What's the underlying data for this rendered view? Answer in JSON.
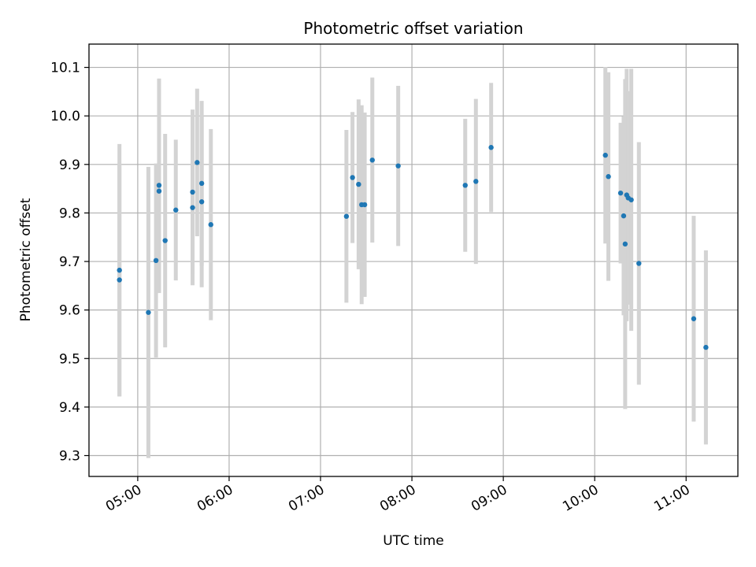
{
  "chart_data": {
    "type": "scatter",
    "title": "Photometric offset variation",
    "xlabel": "UTC time",
    "ylabel": "Photometric offset",
    "xlim": [
      "04:28",
      "11:34"
    ],
    "ylim": [
      9.257,
      10.148
    ],
    "x_ticks": [
      "05:00",
      "06:00",
      "07:00",
      "08:00",
      "09:00",
      "10:00",
      "11:00"
    ],
    "y_ticks": [
      "9.3",
      "9.4",
      "9.5",
      "9.6",
      "9.7",
      "9.8",
      "9.9",
      "10.0",
      "10.1"
    ],
    "grid": true,
    "point_color": "#1f77b4",
    "errorbar_color": "#d3d3d3",
    "points": [
      {
        "x": "04:48",
        "y": 9.682,
        "yerr": 0.26
      },
      {
        "x": "04:48",
        "y": 9.662,
        "yerr": 0.24
      },
      {
        "x": "05:07",
        "y": 9.595,
        "yerr": 0.3
      },
      {
        "x": "05:12",
        "y": 9.702,
        "yerr": 0.2
      },
      {
        "x": "05:14",
        "y": 9.857,
        "yerr": 0.22
      },
      {
        "x": "05:14",
        "y": 9.845,
        "yerr": 0.21
      },
      {
        "x": "05:18",
        "y": 9.743,
        "yerr": 0.22
      },
      {
        "x": "05:25",
        "y": 9.806,
        "yerr": 0.145
      },
      {
        "x": "05:36",
        "y": 9.843,
        "yerr": 0.17
      },
      {
        "x": "05:36",
        "y": 9.811,
        "yerr": 0.16
      },
      {
        "x": "05:39",
        "y": 9.904,
        "yerr": 0.152
      },
      {
        "x": "05:42",
        "y": 9.861,
        "yerr": 0.17
      },
      {
        "x": "05:42",
        "y": 9.823,
        "yerr": 0.176
      },
      {
        "x": "05:48",
        "y": 9.776,
        "yerr": 0.197
      },
      {
        "x": "07:17",
        "y": 9.793,
        "yerr": 0.178
      },
      {
        "x": "07:21",
        "y": 9.873,
        "yerr": 0.135
      },
      {
        "x": "07:25",
        "y": 9.859,
        "yerr": 0.175
      },
      {
        "x": "07:27",
        "y": 9.817,
        "yerr": 0.205
      },
      {
        "x": "07:29",
        "y": 9.817,
        "yerr": 0.19
      },
      {
        "x": "07:34",
        "y": 9.909,
        "yerr": 0.17
      },
      {
        "x": "07:51",
        "y": 9.897,
        "yerr": 0.165
      },
      {
        "x": "08:35",
        "y": 9.857,
        "yerr": 0.137
      },
      {
        "x": "08:42",
        "y": 9.865,
        "yerr": 0.17
      },
      {
        "x": "08:52",
        "y": 9.935,
        "yerr": 0.133
      },
      {
        "x": "10:07",
        "y": 9.919,
        "yerr": 0.182
      },
      {
        "x": "10:09",
        "y": 9.875,
        "yerr": 0.215
      },
      {
        "x": "10:17",
        "y": 9.841,
        "yerr": 0.145
      },
      {
        "x": "10:19",
        "y": 9.794,
        "yerr": 0.205
      },
      {
        "x": "10:20",
        "y": 9.736,
        "yerr": 0.34
      },
      {
        "x": "10:21",
        "y": 9.837,
        "yerr": 0.26
      },
      {
        "x": "10:22",
        "y": 9.831,
        "yerr": 0.22
      },
      {
        "x": "10:24",
        "y": 9.827,
        "yerr": 0.27
      },
      {
        "x": "10:29",
        "y": 9.696,
        "yerr": 0.25
      },
      {
        "x": "11:05",
        "y": 9.582,
        "yerr": 0.212
      },
      {
        "x": "11:13",
        "y": 9.523,
        "yerr": 0.2
      }
    ]
  }
}
